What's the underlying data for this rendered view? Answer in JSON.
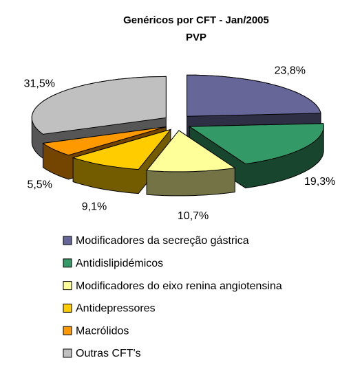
{
  "chart_data": {
    "type": "pie3d",
    "title": "Genéricos por CFT - Jan/2005",
    "subtitle": "PVP",
    "categories": [
      "Modificadores da secreção gástrica",
      "Antidislipidémicos",
      "Modificadores do eixo renina angiotensina",
      "Antidepressores",
      "Macrólidos",
      "Outras CFT's"
    ],
    "values": [
      23.8,
      19.3,
      10.7,
      9.1,
      5.5,
      31.5
    ],
    "value_labels": [
      "23,8%",
      "19,3%",
      "10,7%",
      "9,1%",
      "5,5%",
      "31,5%"
    ],
    "colors": [
      "#666699",
      "#339966",
      "#ffff99",
      "#ffcc00",
      "#ff9900",
      "#c0c0c0"
    ],
    "legend": "bottom"
  }
}
